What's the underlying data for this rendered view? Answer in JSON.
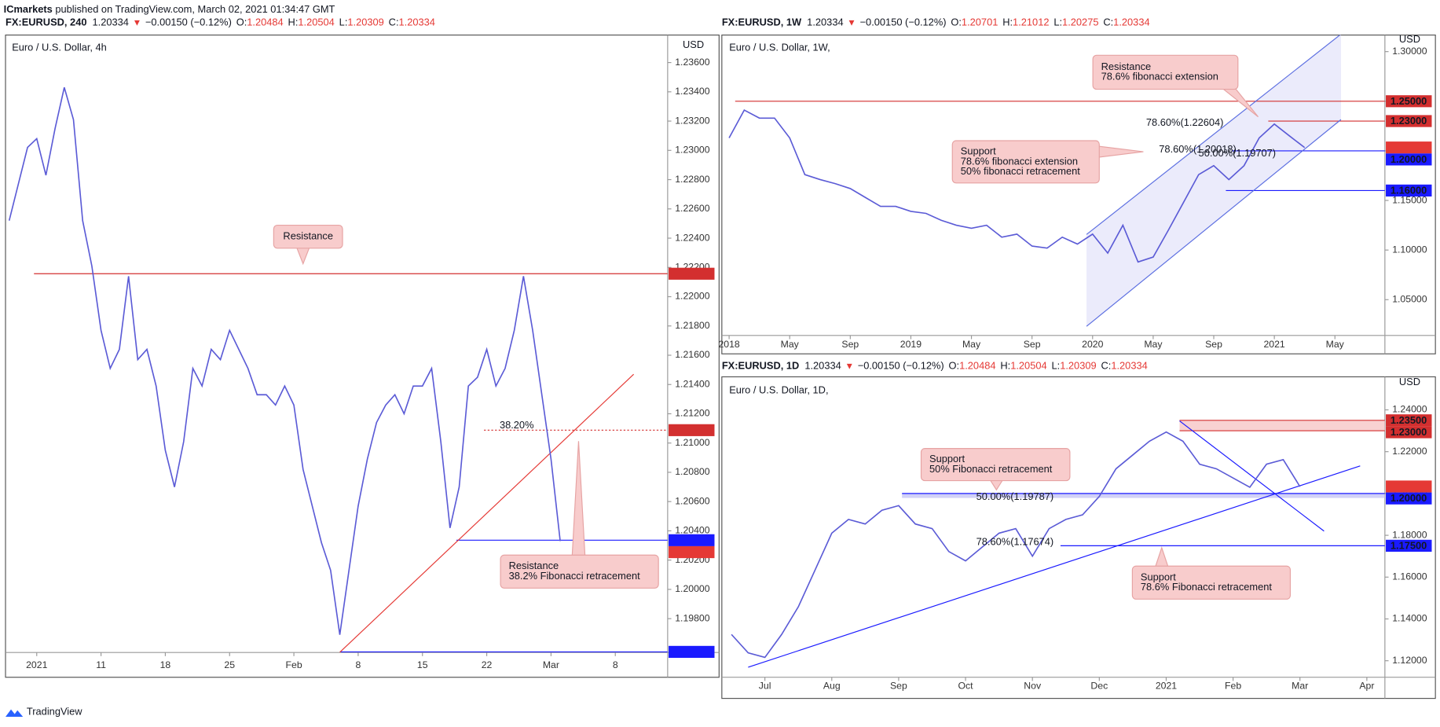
{
  "header": {
    "publisher": "ICmarkets",
    "published": "published on TradingView.com, March 02, 2021 01:34:47 GMT"
  },
  "footer": {
    "brand": "TradingView"
  },
  "chart_data": [
    {
      "type": "line",
      "symbol": "FX:EURUSD, 240",
      "last": "1.20334",
      "change_marker": "▼",
      "change": "−0.00150 (−0.12%)",
      "ohlc": [
        {
          "label": "O:",
          "value": "1.20484"
        },
        {
          "label": "H:",
          "value": "1.20504"
        },
        {
          "label": "L:",
          "value": "1.20309"
        },
        {
          "label": "C:",
          "value": "1.20334"
        }
      ],
      "title": "Euro / U.S. Dollar, 4h",
      "currency": "USD",
      "x": [
        -3,
        -2,
        -1,
        0,
        1,
        2,
        3,
        4,
        5,
        6,
        7,
        8,
        9,
        10,
        11,
        12,
        13,
        14,
        15,
        16,
        17,
        18,
        19,
        20,
        21,
        22,
        23,
        24,
        25,
        26,
        27,
        28,
        29,
        30,
        31,
        32,
        33,
        34,
        35,
        36,
        37,
        38,
        39,
        40,
        41,
        42,
        43,
        44,
        45,
        46,
        47,
        48,
        49,
        50,
        51,
        52,
        53,
        54,
        55,
        56,
        57
      ],
      "series": [
        {
          "color": "#5b5bd6",
          "values": [
            1.2252,
            1.2277,
            1.2302,
            1.2308,
            1.2283,
            1.2315,
            1.2343,
            1.2321,
            1.2252,
            1.2221,
            1.2177,
            1.2151,
            1.2164,
            1.2214,
            1.2157,
            1.2164,
            1.2139,
            1.2095,
            1.207,
            1.2101,
            1.2151,
            1.2139,
            1.2164,
            1.2157,
            1.2177,
            1.2164,
            1.2151,
            1.2133,
            1.2133,
            1.2126,
            1.2139,
            1.2126,
            1.2082,
            1.2057,
            1.2032,
            1.2013,
            1.1969,
            1.2013,
            1.2057,
            1.2089,
            1.2114,
            1.2126,
            1.2133,
            1.212,
            1.2139,
            1.2139,
            1.2151,
            1.2101,
            1.2042,
            1.207,
            1.2139,
            1.2145,
            1.2164,
            1.2139,
            1.2151,
            1.2177,
            1.2214,
            1.2177,
            1.2133,
            1.2089,
            1.2033
          ]
        }
      ],
      "xlim": [
        -3.3,
        68.7
      ],
      "xticks": [
        {
          "value": 0,
          "label": "2021"
        },
        {
          "value": 7,
          "label": "11"
        },
        {
          "value": 14,
          "label": "18"
        },
        {
          "value": 21,
          "label": "25"
        },
        {
          "value": 28,
          "label": "Feb"
        },
        {
          "value": 35,
          "label": "8"
        },
        {
          "value": 42,
          "label": "15"
        },
        {
          "value": 49,
          "label": "22"
        },
        {
          "value": 56,
          "label": "Mar"
        },
        {
          "value": 63,
          "label": "8"
        }
      ],
      "ylim": [
        1.19569,
        1.23788
      ],
      "yticks": [
        {
          "value": 1.236,
          "label": "1.23600"
        },
        {
          "value": 1.234,
          "label": "1.23400"
        },
        {
          "value": 1.232,
          "label": "1.23200"
        },
        {
          "value": 1.23,
          "label": "1.23000"
        },
        {
          "value": 1.228,
          "label": "1.22800"
        },
        {
          "value": 1.226,
          "label": "1.22600"
        },
        {
          "value": 1.224,
          "label": "1.22400"
        },
        {
          "value": 1.222,
          "label": "1.22200"
        },
        {
          "value": 1.22,
          "label": "1.22000"
        },
        {
          "value": 1.218,
          "label": "1.21800"
        },
        {
          "value": 1.216,
          "label": "1.21600"
        },
        {
          "value": 1.214,
          "label": "1.21400"
        },
        {
          "value": 1.212,
          "label": "1.21200"
        },
        {
          "value": 1.21,
          "label": "1.21000"
        },
        {
          "value": 1.208,
          "label": "1.20800"
        },
        {
          "value": 1.206,
          "label": "1.20600"
        },
        {
          "value": 1.204,
          "label": "1.20400"
        },
        {
          "value": 1.202,
          "label": "1.20200"
        },
        {
          "value": 1.2,
          "label": "1.20000"
        },
        {
          "value": 1.198,
          "label": "1.19800"
        }
      ],
      "levels": [
        {
          "value": 1.22157,
          "color": "#d32f2f",
          "x0": -0.3
        },
        {
          "value": 1.21088,
          "color": "#d32f2f",
          "x0": 48.7,
          "style": "dotted"
        },
        {
          "value": 1.20336,
          "color": "#1a1aff",
          "x0": 45.7
        },
        {
          "value": 1.20334,
          "color": "#e53935"
        },
        {
          "value": 1.19573,
          "color": "#1a1aff",
          "x0": 33
        }
      ],
      "trendlines": [
        {
          "color": "#e53935",
          "x": [
            33,
            65
          ],
          "y": [
            1.1957,
            1.2147
          ]
        }
      ],
      "fib_labels": [
        "38.20%"
      ],
      "annotations": [
        [
          "Resistance"
        ],
        [
          "Resistance",
          "38.2% Fibonacci retracement"
        ]
      ]
    },
    {
      "type": "line",
      "symbol": "FX:EURUSD, 1W",
      "last": "1.20334",
      "change_marker": "▼",
      "change": "−0.00150 (−0.12%)",
      "ohlc": [
        {
          "label": "O:",
          "value": "1.20701"
        },
        {
          "label": "H:",
          "value": "1.21012"
        },
        {
          "label": "L:",
          "value": "1.20275"
        },
        {
          "label": "C:",
          "value": "1.20334"
        }
      ],
      "title": "Euro / U.S. Dollar, 1W,",
      "currency": "USD",
      "x": [
        0,
        1,
        2,
        3,
        4,
        5,
        6,
        7,
        8,
        9,
        10,
        11,
        12,
        13,
        14,
        15,
        16,
        17,
        18,
        19,
        20,
        21,
        22,
        23,
        24,
        25,
        26,
        27,
        28,
        29,
        30,
        31,
        32,
        33,
        34,
        35,
        36,
        37,
        38
      ],
      "series": [
        {
          "color": "#5b5bd6",
          "values": [
            1.213,
            1.241,
            1.233,
            1.233,
            1.213,
            1.176,
            1.171,
            1.167,
            1.162,
            1.153,
            1.144,
            1.144,
            1.139,
            1.137,
            1.13,
            1.125,
            1.122,
            1.125,
            1.113,
            1.116,
            1.104,
            1.102,
            1.113,
            1.106,
            1.116,
            1.097,
            1.125,
            1.088,
            1.093,
            1.12,
            1.148,
            1.176,
            1.185,
            1.171,
            1.185,
            1.213,
            1.227,
            1.215,
            1.2033
          ]
        }
      ],
      "xlim": [
        -0.42,
        43.3
      ],
      "xticks": [
        {
          "value": 0,
          "label": "2018"
        },
        {
          "value": 4,
          "label": "May"
        },
        {
          "value": 8,
          "label": "Sep"
        },
        {
          "value": 12,
          "label": "2019"
        },
        {
          "value": 16,
          "label": "May"
        },
        {
          "value": 20,
          "label": "Sep"
        },
        {
          "value": 24,
          "label": "2020"
        },
        {
          "value": 28,
          "label": "May"
        },
        {
          "value": 32,
          "label": "Sep"
        },
        {
          "value": 36,
          "label": "2021"
        },
        {
          "value": 40,
          "label": "May"
        }
      ],
      "ylim": [
        1.0139,
        1.3167
      ],
      "yticks": [
        {
          "value": 1.3,
          "label": "1.30000"
        },
        {
          "value": 1.25,
          "label": "1.25000"
        },
        {
          "value": 1.2,
          "label": "1.20000"
        },
        {
          "value": 1.15,
          "label": "1.15000"
        },
        {
          "value": 1.1,
          "label": "1.10000"
        },
        {
          "value": 1.05,
          "label": "1.05000"
        }
      ],
      "levels": [
        {
          "value": 1.25,
          "label": "1.25000",
          "color": "#d32f2f",
          "x0": 0.4
        },
        {
          "value": 1.23,
          "label": "1.23000",
          "color": "#d32f2f",
          "x0": 35.6
        },
        {
          "value": 1.20334,
          "color": "#e53935"
        },
        {
          "value": 1.2,
          "label": "1.20000",
          "color": "#1a1aff",
          "x0": 33.2
        },
        {
          "value": 1.16,
          "label": "1.16000",
          "color": "#1a1aff",
          "x0": 32.8
        }
      ],
      "channel_fill": "#e6e6fa",
      "trendlines": [
        {
          "color": "#5b6ee1",
          "x": [
            23.6,
            40.4
          ],
          "y": [
            1.0231,
            1.2315
          ]
        },
        {
          "color": "#5b6ee1",
          "x": [
            23.6,
            40.4
          ],
          "y": [
            1.1157,
            1.3176
          ]
        }
      ],
      "fib_labels": [
        "78.60%(1.22604)",
        "78.60%(1.20018)",
        "50.00%(1.19707)"
      ],
      "annotations": [
        [
          "Resistance",
          "78.6% fibonacci extension"
        ],
        [
          "Support",
          "78.6% fibonacci extension",
          "50% fibonacci retracement"
        ]
      ]
    },
    {
      "type": "line",
      "symbol": "FX:EURUSD, 1D",
      "last": "1.20334",
      "change_marker": "▼",
      "change": "−0.00150 (−0.12%)",
      "ohlc": [
        {
          "label": "O:",
          "value": "1.20484"
        },
        {
          "label": "H:",
          "value": "1.20504"
        },
        {
          "label": "L:",
          "value": "1.20309"
        },
        {
          "label": "C:",
          "value": "1.20334"
        }
      ],
      "title": "Euro / U.S. Dollar, 1D,",
      "currency": "USD",
      "x": [
        -0.5,
        -0.25,
        0,
        0.25,
        0.5,
        0.75,
        1,
        1.25,
        1.5,
        1.75,
        2,
        2.25,
        2.5,
        2.75,
        3,
        3.25,
        3.5,
        3.75,
        4,
        4.25,
        4.5,
        4.75,
        5,
        5.25,
        5.5,
        5.75,
        6,
        6.25,
        6.5,
        6.75,
        7,
        7.25,
        7.5,
        7.75,
        8
      ],
      "series": [
        {
          "color": "#5b5bd6",
          "values": [
            1.1326,
            1.1238,
            1.1216,
            1.1326,
            1.1458,
            1.1634,
            1.181,
            1.1876,
            1.1854,
            1.192,
            1.1942,
            1.1854,
            1.1832,
            1.1722,
            1.1678,
            1.1744,
            1.181,
            1.1832,
            1.17,
            1.1832,
            1.1876,
            1.1898,
            1.1986,
            1.2118,
            1.2184,
            1.225,
            1.2294,
            1.225,
            1.214,
            1.2118,
            1.2074,
            1.203,
            1.214,
            1.2162,
            1.2033
          ]
        }
      ],
      "xlim": [
        -0.63,
        9.27
      ],
      "xticks": [
        {
          "value": 0,
          "label": "Jul"
        },
        {
          "value": 1,
          "label": "Aug"
        },
        {
          "value": 2,
          "label": "Sep"
        },
        {
          "value": 3,
          "label": "Oct"
        },
        {
          "value": 4,
          "label": "Nov"
        },
        {
          "value": 5,
          "label": "Dec"
        },
        {
          "value": 6,
          "label": "2021"
        },
        {
          "value": 7,
          "label": "Feb"
        },
        {
          "value": 8,
          "label": "Mar"
        },
        {
          "value": 9,
          "label": "Apr"
        }
      ],
      "ylim": [
        1.1121,
        1.2558
      ],
      "yticks": [
        {
          "value": 1.24,
          "label": "1.24000"
        },
        {
          "value": 1.22,
          "label": "1.22000"
        },
        {
          "value": 1.2,
          "label": "1.20000"
        },
        {
          "value": 1.18,
          "label": "1.18000"
        },
        {
          "value": 1.16,
          "label": "1.16000"
        },
        {
          "value": 1.14,
          "label": "1.14000"
        },
        {
          "value": 1.12,
          "label": "1.12000"
        }
      ],
      "zones": [
        {
          "from": 1.23,
          "to": 1.235,
          "x0": 6.2,
          "color": "#f6c6c6"
        },
        {
          "from": 1.19787,
          "to": 1.2,
          "x0": 2.05,
          "color": "#c5c5f5"
        }
      ],
      "levels": [
        {
          "value": 1.235,
          "label": "1.23500",
          "color": "#d32f2f",
          "x0": 6.2
        },
        {
          "value": 1.23,
          "label": "1.23000",
          "color": "#d32f2f",
          "x0": 6.2
        },
        {
          "value": 1.20334,
          "color": "#e53935"
        },
        {
          "value": 1.2,
          "label": "1.20000",
          "color": "#1a1aff",
          "x0": 2.05
        },
        {
          "value": 1.175,
          "label": "1.17500",
          "color": "#1a1aff",
          "x0": 4.42
        }
      ],
      "trendlines": [
        {
          "color": "#1a1aff",
          "x": [
            -0.25,
            8.9
          ],
          "y": [
            1.1169,
            1.2132
          ]
        },
        {
          "color": "#1a1aff",
          "x": [
            6.2,
            8.36
          ],
          "y": [
            1.2347,
            1.182
          ]
        }
      ],
      "fib_labels": [
        "50.00%(1.19787)",
        "78.60%(1.17674)"
      ],
      "annotations": [
        [
          "Support",
          "50% Fibonacci retracement"
        ],
        [
          "Support",
          "78.6% Fibonacci retracement"
        ]
      ]
    }
  ]
}
